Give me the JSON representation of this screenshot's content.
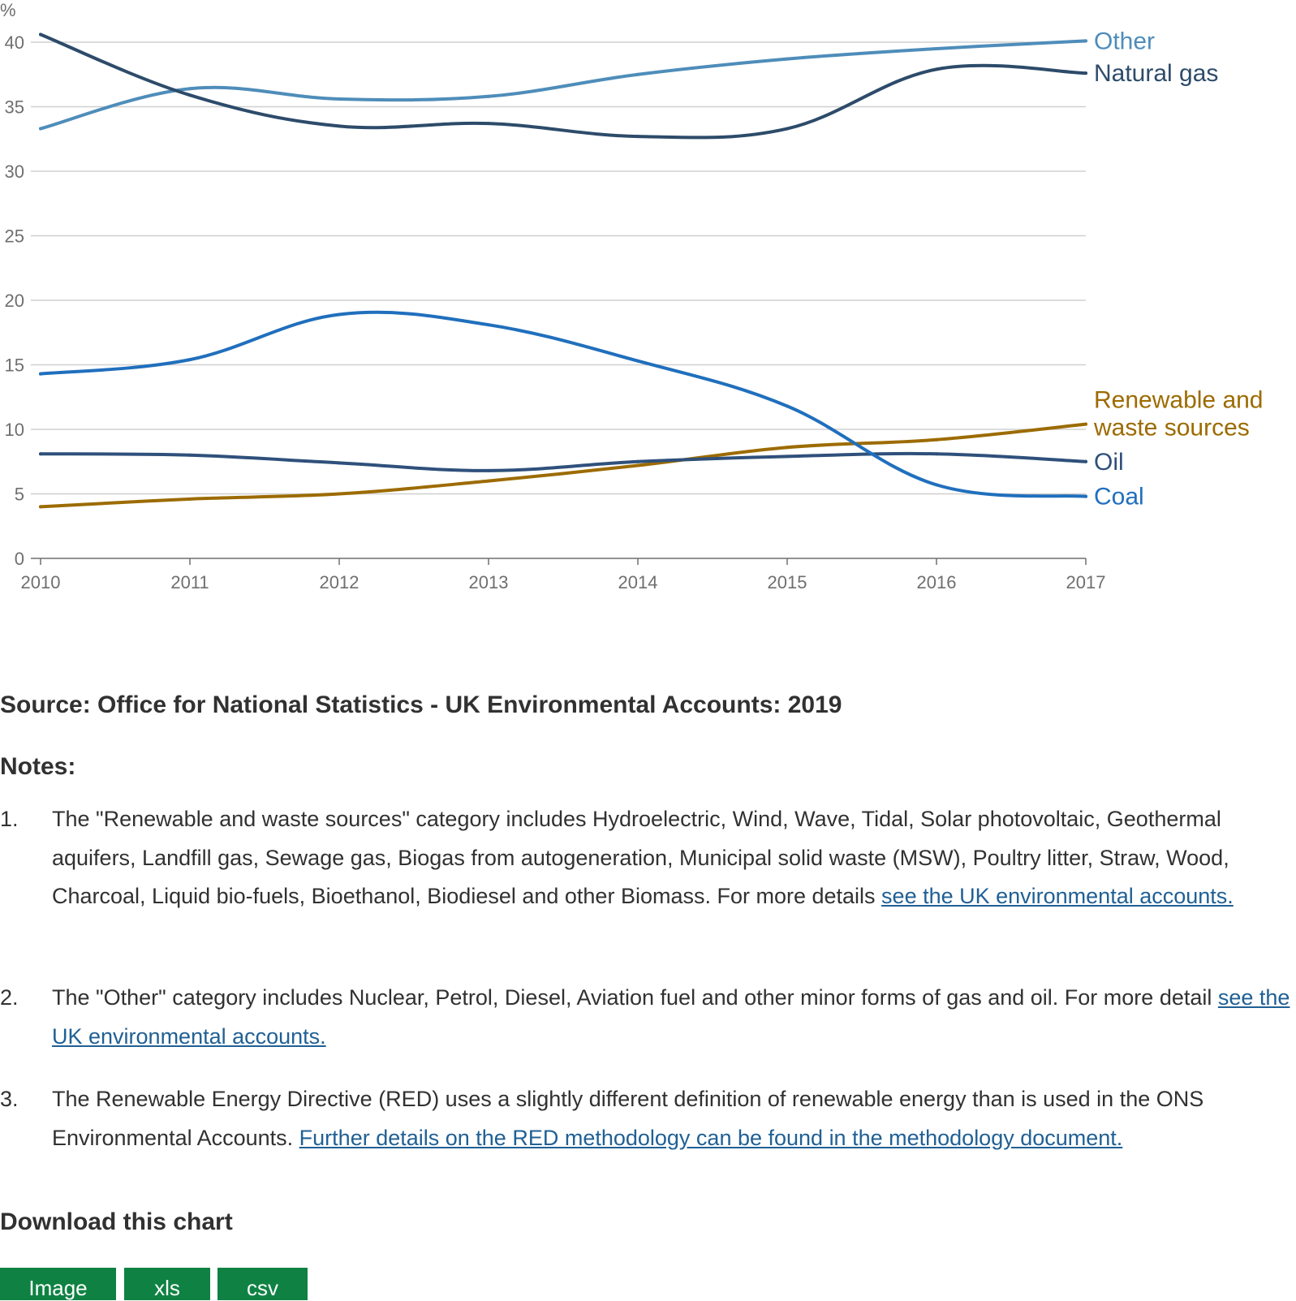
{
  "chart_data": {
    "type": "line",
    "ylabel": "%",
    "ylim": [
      0,
      40
    ],
    "yticks": [
      0,
      5,
      10,
      15,
      20,
      25,
      30,
      35,
      40
    ],
    "x": [
      "2010",
      "2011",
      "2012",
      "2013",
      "2014",
      "2015",
      "2016",
      "2017"
    ],
    "grid": true,
    "series": [
      {
        "name": "Other",
        "color": "#4e8dba",
        "values": [
          33.3,
          36.4,
          35.6,
          35.8,
          37.5,
          38.7,
          39.5,
          40.1
        ]
      },
      {
        "name": "Natural gas",
        "color": "#2d4b6a",
        "values": [
          40.6,
          35.9,
          33.5,
          33.7,
          32.7,
          33.3,
          37.9,
          37.6
        ]
      },
      {
        "name": "Renewable and waste sources",
        "label_lines": [
          "Renewable and",
          "waste sources"
        ],
        "color": "#9c6b00",
        "values": [
          4.0,
          4.6,
          5.0,
          6.0,
          7.2,
          8.6,
          9.2,
          10.4
        ]
      },
      {
        "name": "Oil",
        "color": "#2f507b",
        "values": [
          8.1,
          8.0,
          7.4,
          6.8,
          7.5,
          7.9,
          8.1,
          7.5
        ]
      },
      {
        "name": "Coal",
        "color": "#206fbd",
        "values": [
          14.3,
          15.4,
          18.9,
          18.1,
          15.3,
          11.8,
          5.7,
          4.8
        ]
      }
    ]
  },
  "source": "Source: Office for National Statistics - UK Environmental Accounts: 2019",
  "notes_heading": "Notes:",
  "notes": [
    {
      "number": "1.",
      "text": "The \"Renewable and waste sources\" category includes Hydroelectric, Wind, Wave, Tidal, Solar photovoltaic, Geothermal aquifers, Landfill gas, Sewage gas, Biogas from autogeneration, Municipal solid waste (MSW), Poultry litter, Straw, Wood, Charcoal, Liquid bio-fuels, Bioethanol, Biodiesel and other Biomass. For more details ",
      "link": "see the UK environmental accounts."
    },
    {
      "number": "2.",
      "text": "The \"Other\" category includes Nuclear, Petrol, Diesel, Aviation fuel and other minor forms of gas and oil. For more detail ",
      "link": "see the UK environmental accounts."
    },
    {
      "number": "3.",
      "text": "The Renewable Energy Directive (RED) uses a slightly different definition of renewable energy than is used in the ONS Environmental Accounts. ",
      "link": "Further details on the RED methodology can be found in the methodology document."
    }
  ],
  "download_heading": "Download this chart",
  "download_buttons": [
    "Image",
    "xls",
    "csv"
  ]
}
